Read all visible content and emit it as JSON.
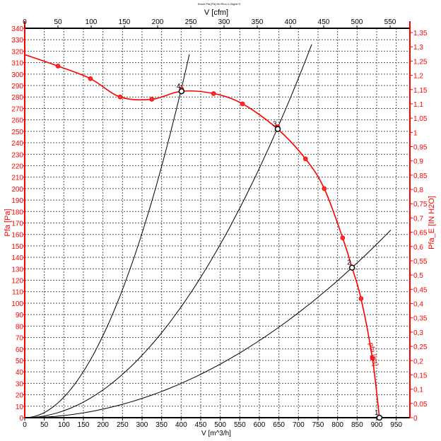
{
  "chart_data": {
    "type": "line",
    "title": "Druck Pfa [Pa] für Rho=1,2kg/m^3",
    "xlabel": "V [m^3/h]",
    "xlabel_top": "V [cfm]",
    "ylabel": "Pfa [Pa]",
    "ylabel_right": "Pfa_E [IN H2O]",
    "xlim": [
      0,
      985
    ],
    "ylim": [
      0,
      340
    ],
    "x_ticks": [
      0,
      50,
      100,
      150,
      200,
      250,
      300,
      350,
      400,
      450,
      500,
      550,
      600,
      650,
      700,
      750,
      800,
      850,
      900,
      950
    ],
    "y_ticks": [
      0,
      10,
      20,
      30,
      40,
      50,
      60,
      70,
      80,
      90,
      100,
      110,
      120,
      130,
      140,
      150,
      160,
      170,
      180,
      190,
      200,
      210,
      220,
      230,
      240,
      250,
      260,
      270,
      280,
      290,
      300,
      310,
      320,
      330,
      340
    ],
    "top_ticks_cfm": [
      0,
      50,
      100,
      150,
      200,
      250,
      300,
      350,
      400,
      450,
      500,
      550
    ],
    "right_ticks_inh2o": [
      "0",
      "0,05",
      "0,1",
      "0,15",
      "0,2",
      "0,25",
      "0,3",
      "0,35",
      "0,4",
      "0,45",
      "0,5",
      "0,55",
      "0,6",
      "0,65",
      "0,7",
      "0,75",
      "0,8",
      "0,85",
      "0,9",
      "0,95",
      "1",
      "1,05",
      "1,1",
      "1,15",
      "1,2",
      "1,25",
      "1,3",
      "1,35"
    ],
    "grid": true,
    "colors": {
      "fan_curve": "#ff0000",
      "system_curve": "#000000",
      "axis_left": "#ff0000"
    },
    "fan_curve": {
      "name": "pfa [pa]",
      "x": [
        0,
        85,
        168,
        244,
        325,
        401,
        483,
        557,
        647,
        718,
        766,
        813,
        837,
        860,
        889,
        907
      ],
      "y": [
        317,
        307,
        296,
        280,
        278,
        285,
        283,
        274,
        252,
        226,
        200,
        157,
        131,
        104,
        52,
        0
      ]
    },
    "measured_points": {
      "x": [
        85,
        168,
        244,
        325,
        401,
        483,
        557,
        647,
        718,
        766,
        813,
        860,
        889
      ],
      "y": [
        307,
        296,
        280,
        278,
        287,
        283,
        274,
        254,
        226,
        200,
        157,
        104,
        52
      ]
    },
    "system_curves": [
      {
        "k": 0.00179,
        "x_max": 421
      },
      {
        "k": 0.000605,
        "x_max": 734
      },
      {
        "k": 0.000187,
        "x_max": 936
      }
    ],
    "operating_points": [
      {
        "label": "1",
        "x": 907,
        "y": 0
      },
      {
        "label": "2",
        "x": 837,
        "y": 131
      },
      {
        "label": "3",
        "x": 647,
        "y": 252
      },
      {
        "label": "4",
        "x": 401,
        "y": 285
      }
    ]
  }
}
